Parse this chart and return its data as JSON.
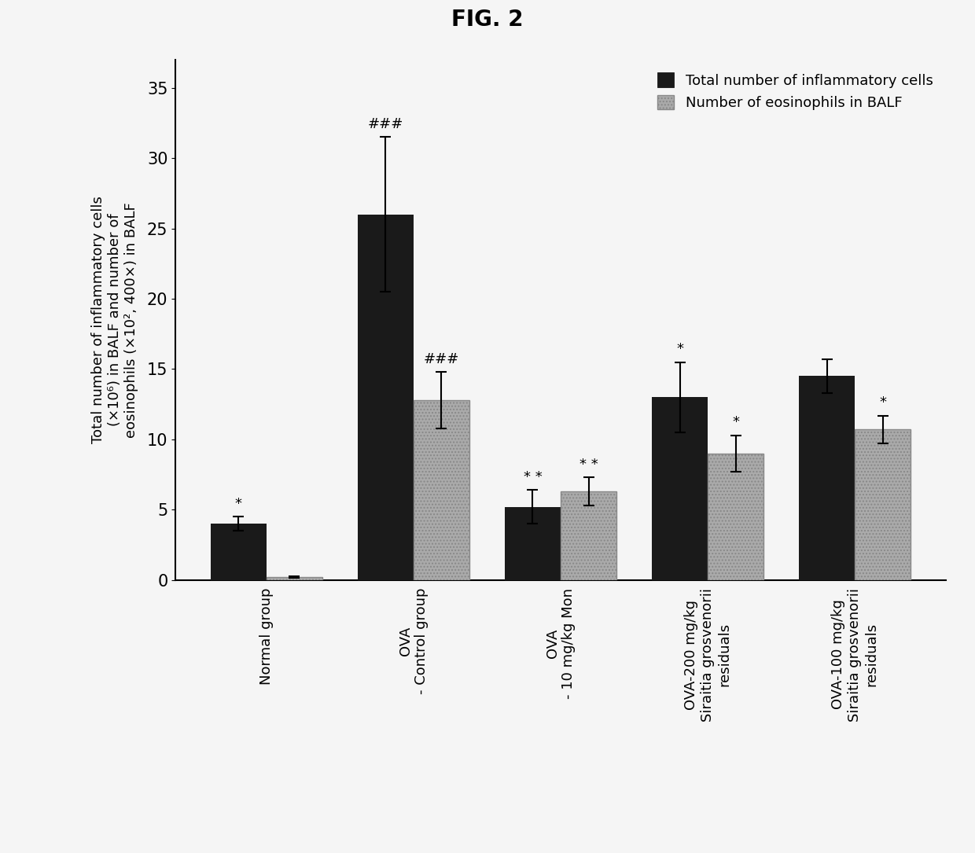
{
  "title": "FIG. 2",
  "ylabel_line1": "Total number of inflammatory cells",
  "ylabel_line2": "(×10⁶) in BALF and number of",
  "ylabel_line3": "eosinophils (×10², 400×) in BALF",
  "categories": [
    "Normal group",
    "OVA\n- Control group",
    "OVA\n- 10 mg/kg Mon",
    "OVA-200 mg/kg\nSiraitia grosvenorii\nresiduals",
    "OVA-100 mg/kg\nSiraitia grosvenorii\nresiduals"
  ],
  "series1_label": "Total number of inflammatory cells",
  "series2_label": "Number of eosinophils in BALF",
  "series1_values": [
    4.0,
    26.0,
    5.2,
    13.0,
    14.5
  ],
  "series2_values": [
    0.2,
    12.8,
    6.3,
    9.0,
    10.7
  ],
  "series1_errors": [
    0.5,
    5.5,
    1.2,
    2.5,
    1.2
  ],
  "series2_errors": [
    0.05,
    2.0,
    1.0,
    1.3,
    1.0
  ],
  "series1_color": "#1a1a1a",
  "series2_color": "#aaaaaa",
  "ylim": [
    0,
    37
  ],
  "yticks": [
    0,
    5,
    10,
    15,
    20,
    25,
    30,
    35
  ],
  "bar_width": 0.38,
  "annotations_s1": [
    "*",
    "###",
    "* *",
    "*",
    ""
  ],
  "annotations_s2": [
    "",
    "###",
    "* *",
    "*",
    "*"
  ],
  "background_color": "#f5f5f5",
  "figure_width": 12.4,
  "figure_height": 10.85
}
